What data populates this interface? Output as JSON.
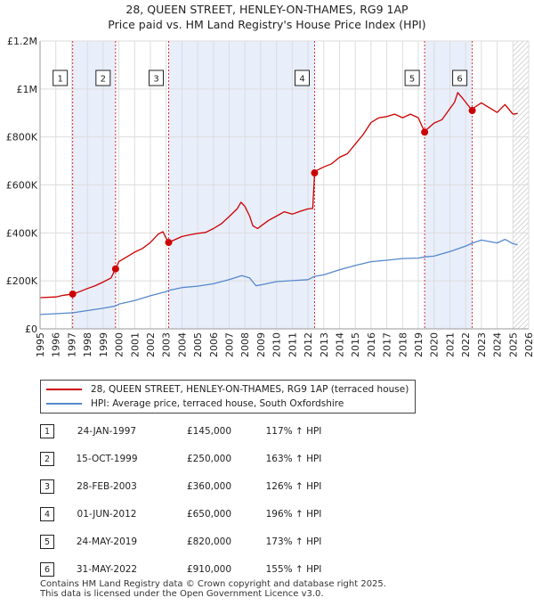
{
  "title_line1": "28, QUEEN STREET, HENLEY-ON-THAMES, RG9 1AP",
  "title_line2": "Price paid vs. HM Land Registry's House Price Index (HPI)",
  "colors": {
    "property": "#cc0000",
    "hpi": "#5588cc",
    "shade": "#e8eefa",
    "hatch": "#bbbbbb",
    "grid": "#dddddd"
  },
  "chart_data": {
    "type": "line",
    "xlim": [
      1995,
      2026
    ],
    "ylim": [
      0,
      1200000
    ],
    "x_ticks": [
      "1995",
      "1996",
      "1997",
      "1998",
      "1999",
      "2000",
      "2001",
      "2002",
      "2003",
      "2004",
      "2005",
      "2006",
      "2007",
      "2008",
      "2009",
      "2010",
      "2011",
      "2012",
      "2013",
      "2014",
      "2015",
      "2016",
      "2017",
      "2018",
      "2019",
      "2020",
      "2021",
      "2022",
      "2023",
      "2024",
      "2025",
      "2026"
    ],
    "y_ticks": [
      {
        "value": 0,
        "label": "£0"
      },
      {
        "value": 200000,
        "label": "£200K"
      },
      {
        "value": 400000,
        "label": "£400K"
      },
      {
        "value": 600000,
        "label": "£600K"
      },
      {
        "value": 800000,
        "label": "£800K"
      },
      {
        "value": 1000000,
        "label": "£1M"
      },
      {
        "value": 1200000,
        "label": "£1.2M"
      }
    ],
    "shaded_ranges": [
      [
        1997.07,
        1999.79
      ],
      [
        2003.16,
        2012.42
      ],
      [
        2019.4,
        2022.42
      ]
    ],
    "hatched_from": 2025.0,
    "series": [
      {
        "name": "28, QUEEN STREET, HENLEY-ON-THAMES, RG9 1AP (terraced house)",
        "points": [
          [
            1995.0,
            130000
          ],
          [
            1996.0,
            133000
          ],
          [
            1996.5,
            140000
          ],
          [
            1997.07,
            145000
          ],
          [
            1997.5,
            155000
          ],
          [
            1998.0,
            168000
          ],
          [
            1998.5,
            180000
          ],
          [
            1999.0,
            195000
          ],
          [
            1999.5,
            212000
          ],
          [
            1999.79,
            250000
          ],
          [
            2000.0,
            280000
          ],
          [
            2000.5,
            300000
          ],
          [
            2001.0,
            320000
          ],
          [
            2001.5,
            335000
          ],
          [
            2002.0,
            360000
          ],
          [
            2002.5,
            395000
          ],
          [
            2002.8,
            405000
          ],
          [
            2003.0,
            378000
          ],
          [
            2003.16,
            360000
          ],
          [
            2003.5,
            370000
          ],
          [
            2004.0,
            385000
          ],
          [
            2004.5,
            392000
          ],
          [
            2005.0,
            398000
          ],
          [
            2005.5,
            402000
          ],
          [
            2006.0,
            418000
          ],
          [
            2006.5,
            438000
          ],
          [
            2007.0,
            468000
          ],
          [
            2007.5,
            500000
          ],
          [
            2007.75,
            528000
          ],
          [
            2008.0,
            510000
          ],
          [
            2008.3,
            470000
          ],
          [
            2008.5,
            430000
          ],
          [
            2008.8,
            418000
          ],
          [
            2009.0,
            428000
          ],
          [
            2009.5,
            452000
          ],
          [
            2010.0,
            470000
          ],
          [
            2010.5,
            488000
          ],
          [
            2011.0,
            478000
          ],
          [
            2011.5,
            490000
          ],
          [
            2012.0,
            500000
          ],
          [
            2012.3,
            502000
          ],
          [
            2012.42,
            650000
          ],
          [
            2012.6,
            662000
          ],
          [
            2013.0,
            675000
          ],
          [
            2013.5,
            688000
          ],
          [
            2014.0,
            715000
          ],
          [
            2014.5,
            730000
          ],
          [
            2015.0,
            770000
          ],
          [
            2015.5,
            810000
          ],
          [
            2016.0,
            860000
          ],
          [
            2016.5,
            880000
          ],
          [
            2017.0,
            885000
          ],
          [
            2017.5,
            895000
          ],
          [
            2018.0,
            880000
          ],
          [
            2018.5,
            895000
          ],
          [
            2019.0,
            880000
          ],
          [
            2019.4,
            820000
          ],
          [
            2019.6,
            835000
          ],
          [
            2020.0,
            858000
          ],
          [
            2020.5,
            872000
          ],
          [
            2021.0,
            918000
          ],
          [
            2021.3,
            945000
          ],
          [
            2021.5,
            985000
          ],
          [
            2021.8,
            962000
          ],
          [
            2022.0,
            945000
          ],
          [
            2022.42,
            910000
          ],
          [
            2022.6,
            925000
          ],
          [
            2023.0,
            942000
          ],
          [
            2023.5,
            922000
          ],
          [
            2024.0,
            902000
          ],
          [
            2024.5,
            935000
          ],
          [
            2025.0,
            895000
          ],
          [
            2025.3,
            898000
          ]
        ]
      },
      {
        "name": "HPI: Average price, terraced house, South Oxfordshire",
        "points": [
          [
            1995.0,
            60000
          ],
          [
            1996.0,
            63000
          ],
          [
            1997.0,
            67000
          ],
          [
            1997.07,
            67000
          ],
          [
            1998.0,
            76000
          ],
          [
            1999.0,
            86000
          ],
          [
            1999.79,
            95000
          ],
          [
            2000.0,
            103000
          ],
          [
            2001.0,
            118000
          ],
          [
            2002.0,
            138000
          ],
          [
            2003.0,
            155000
          ],
          [
            2003.16,
            160000
          ],
          [
            2004.0,
            172000
          ],
          [
            2005.0,
            178000
          ],
          [
            2006.0,
            188000
          ],
          [
            2007.0,
            205000
          ],
          [
            2007.8,
            222000
          ],
          [
            2008.3,
            212000
          ],
          [
            2008.7,
            180000
          ],
          [
            2009.0,
            183000
          ],
          [
            2010.0,
            197000
          ],
          [
            2011.0,
            201000
          ],
          [
            2012.0,
            205000
          ],
          [
            2012.42,
            219000
          ],
          [
            2013.0,
            225000
          ],
          [
            2014.0,
            246000
          ],
          [
            2015.0,
            264000
          ],
          [
            2016.0,
            280000
          ],
          [
            2017.0,
            286000
          ],
          [
            2018.0,
            293000
          ],
          [
            2019.0,
            295000
          ],
          [
            2019.4,
            300000
          ],
          [
            2020.0,
            303000
          ],
          [
            2021.0,
            322000
          ],
          [
            2022.0,
            345000
          ],
          [
            2022.42,
            357000
          ],
          [
            2023.0,
            370000
          ],
          [
            2024.0,
            358000
          ],
          [
            2024.5,
            373000
          ],
          [
            2025.0,
            355000
          ],
          [
            2025.3,
            350000
          ]
        ]
      }
    ],
    "markers": [
      {
        "label": "1",
        "x": 1997.07,
        "y": 145000
      },
      {
        "label": "2",
        "x": 1999.79,
        "y": 250000
      },
      {
        "label": "3",
        "x": 2003.16,
        "y": 360000
      },
      {
        "label": "4",
        "x": 2012.42,
        "y": 650000
      },
      {
        "label": "5",
        "x": 2019.4,
        "y": 820000
      },
      {
        "label": "6",
        "x": 2022.42,
        "y": 910000
      }
    ]
  },
  "legend": {
    "property_label": "28, QUEEN STREET, HENLEY-ON-THAMES, RG9 1AP (terraced house)",
    "hpi_label": "HPI: Average price, terraced house, South Oxfordshire"
  },
  "transactions": [
    {
      "num": "1",
      "date": "24-JAN-1997",
      "price": "£145,000",
      "hpi": "117% ↑ HPI"
    },
    {
      "num": "2",
      "date": "15-OCT-1999",
      "price": "£250,000",
      "hpi": "163% ↑ HPI"
    },
    {
      "num": "3",
      "date": "28-FEB-2003",
      "price": "£360,000",
      "hpi": "126% ↑ HPI"
    },
    {
      "num": "4",
      "date": "01-JUN-2012",
      "price": "£650,000",
      "hpi": "196% ↑ HPI"
    },
    {
      "num": "5",
      "date": "24-MAY-2019",
      "price": "£820,000",
      "hpi": "173% ↑ HPI"
    },
    {
      "num": "6",
      "date": "31-MAY-2022",
      "price": "£910,000",
      "hpi": "155% ↑ HPI"
    }
  ],
  "footer": {
    "line1": "Contains HM Land Registry data © Crown copyright and database right 2025.",
    "line2": "This data is licensed under the Open Government Licence v3.0."
  }
}
